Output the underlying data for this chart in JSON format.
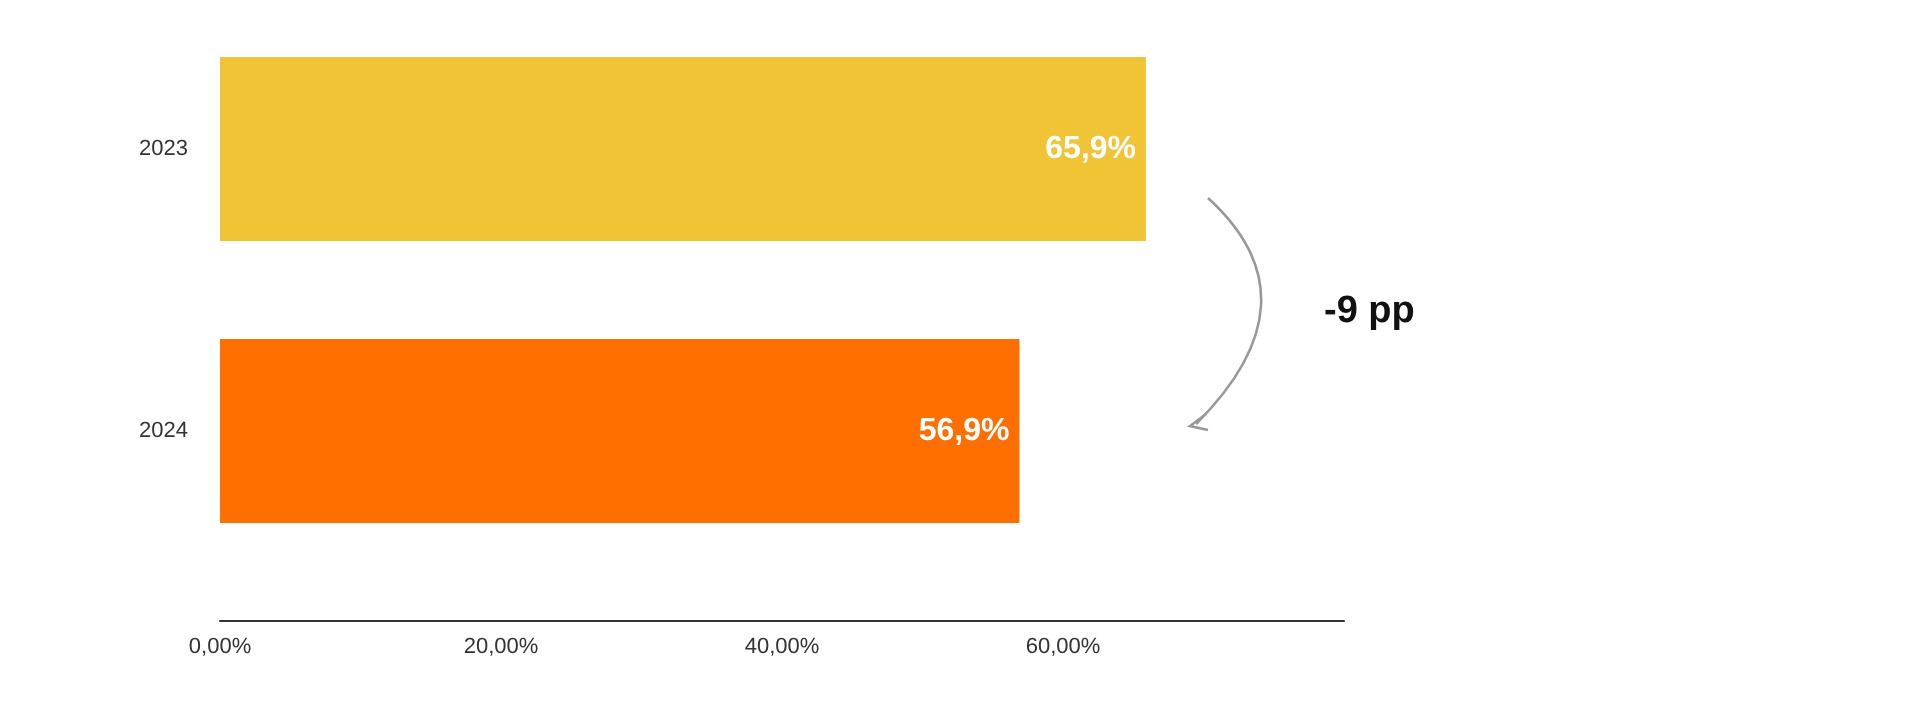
{
  "chart_data": {
    "type": "bar",
    "orientation": "horizontal",
    "categories": [
      "2023",
      "2024"
    ],
    "values": [
      65.9,
      56.9
    ],
    "colors": [
      "#f0c435",
      "#ff6f00"
    ],
    "value_labels": [
      "65,9%",
      "56,9%"
    ],
    "xlim": [
      0,
      80
    ],
    "xticks": [
      {
        "value": 0,
        "label": "0,00%"
      },
      {
        "value": 20,
        "label": "20,00%"
      },
      {
        "value": 40,
        "label": "40,00%"
      },
      {
        "value": 60,
        "label": "60,00%"
      }
    ],
    "annotations": [
      "-9 pp"
    ],
    "grid": false
  }
}
